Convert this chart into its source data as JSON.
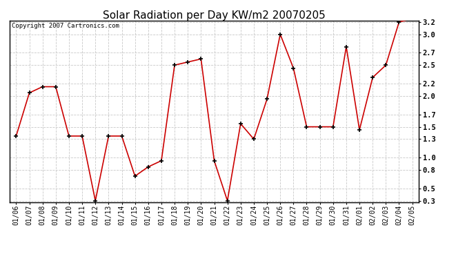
{
  "title": "Solar Radiation per Day KW/m2 20070205",
  "copyright_text": "Copyright 2007 Cartronics.com",
  "dates": [
    "01/06",
    "01/07",
    "01/08",
    "01/09",
    "01/10",
    "01/11",
    "01/12",
    "01/13",
    "01/14",
    "01/15",
    "01/16",
    "01/17",
    "01/18",
    "01/19",
    "01/20",
    "01/21",
    "01/22",
    "01/23",
    "01/24",
    "01/25",
    "01/26",
    "01/27",
    "01/28",
    "01/29",
    "01/30",
    "01/31",
    "02/01",
    "02/02",
    "02/03",
    "02/04",
    "02/05"
  ],
  "values": [
    1.35,
    2.05,
    2.15,
    2.15,
    1.35,
    1.35,
    0.3,
    1.35,
    1.35,
    0.7,
    0.85,
    0.95,
    2.5,
    2.55,
    2.6,
    0.95,
    0.3,
    1.55,
    1.3,
    1.95,
    3.0,
    2.45,
    1.5,
    1.5,
    1.5,
    2.8,
    1.45,
    2.3,
    2.5,
    3.2,
    3.25
  ],
  "line_color": "#cc0000",
  "marker_color": "#000000",
  "bg_color": "#ffffff",
  "grid_color": "#c8c8c8",
  "ylim_min": 0.3,
  "ylim_max": 3.2,
  "yticks": [
    0.3,
    0.5,
    0.8,
    1.0,
    1.3,
    1.5,
    1.7,
    2.0,
    2.2,
    2.5,
    2.7,
    3.0,
    3.2
  ],
  "title_fontsize": 11,
  "tick_fontsize": 7,
  "copyright_fontsize": 6.5,
  "border_color": "#000000"
}
